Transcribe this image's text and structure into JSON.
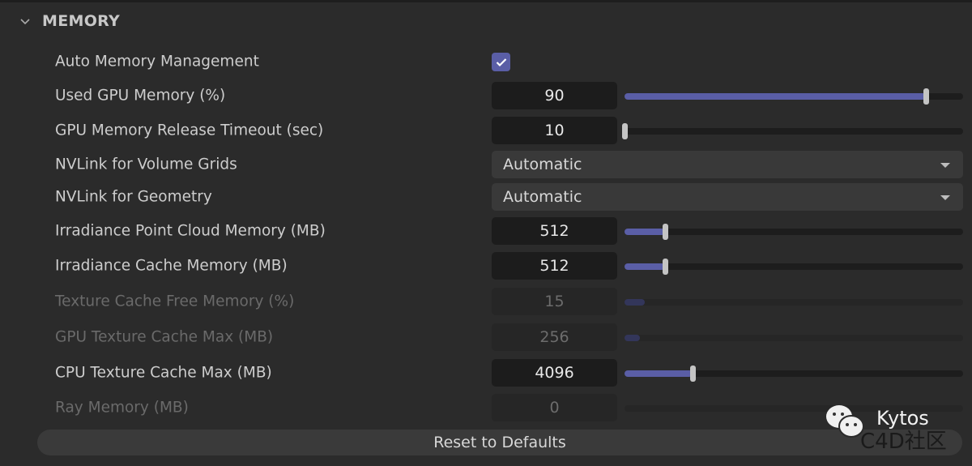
{
  "section": {
    "title": "MEMORY",
    "expanded": true
  },
  "accent_color": "#5a5ea6",
  "rows": [
    {
      "label": "Auto Memory Management",
      "type": "checkbox",
      "checked": true
    },
    {
      "label": "Used GPU Memory (%)",
      "type": "slider",
      "value": "90",
      "fraction": 0.89,
      "enabled": true
    },
    {
      "label": "GPU Memory Release Timeout (sec)",
      "type": "slider",
      "value": "10",
      "fraction": 0.0,
      "enabled": true
    },
    {
      "label": "NVLink for Volume Grids",
      "type": "dropdown",
      "value": "Automatic"
    },
    {
      "label": "NVLink for Geometry",
      "type": "dropdown",
      "value": "Automatic"
    },
    {
      "label": "Irradiance Point Cloud Memory (MB)",
      "type": "slider",
      "value": "512",
      "fraction": 0.12,
      "enabled": true
    },
    {
      "label": "Irradiance Cache Memory (MB)",
      "type": "slider",
      "value": "512",
      "fraction": 0.12,
      "enabled": true
    },
    {
      "label": "Texture Cache Free Memory (%)",
      "type": "slider",
      "value": "15",
      "fraction": 0.06,
      "enabled": false
    },
    {
      "label": "GPU Texture Cache Max (MB)",
      "type": "slider",
      "value": "256",
      "fraction": 0.045,
      "enabled": false
    },
    {
      "label": "CPU Texture Cache Max (MB)",
      "type": "slider",
      "value": "4096",
      "fraction": 0.2,
      "enabled": true
    },
    {
      "label": "Ray Memory (MB)",
      "type": "slider",
      "value": "0",
      "fraction": 0.0,
      "enabled": false
    }
  ],
  "reset_label": "Reset to Defaults",
  "watermark": {
    "line1": "Kytos",
    "line2": "C4D社区",
    "icon": "wechat-icon"
  }
}
